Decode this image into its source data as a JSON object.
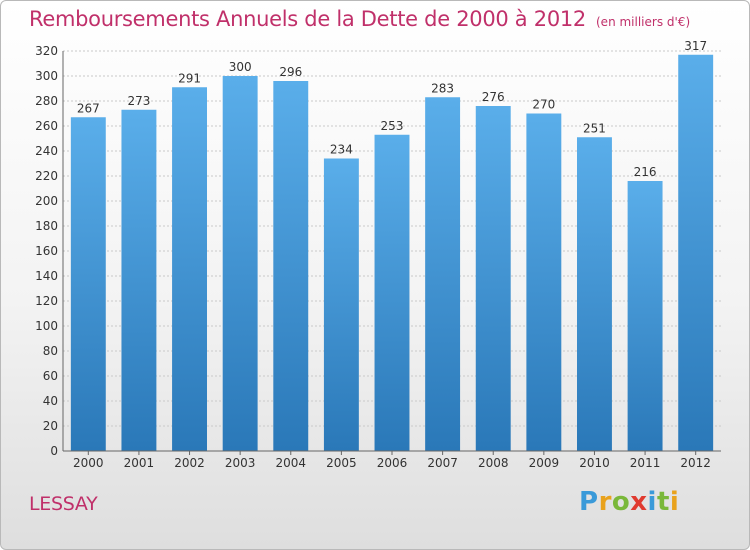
{
  "title": "Remboursements Annuels de la Dette de 2000 à 2012",
  "subtitle": "(en milliers d'€)",
  "commune": "LESSAY",
  "brand": {
    "letters": [
      {
        "char": "P",
        "color": "#3a9ad9"
      },
      {
        "char": "r",
        "color": "#e9a21c"
      },
      {
        "char": "o",
        "color": "#7ab83a"
      },
      {
        "char": "x",
        "color": "#e03a2f"
      },
      {
        "char": "i",
        "color": "#3a9ad9"
      },
      {
        "char": "t",
        "color": "#7ab83a"
      },
      {
        "char": "i",
        "color": "#e9a21c"
      }
    ]
  },
  "colors": {
    "bar_top": "#5aaeea",
    "bar_bottom": "#2a78b8",
    "title": "#c0306a",
    "grid": "#c9c9c9",
    "axis_text": "#333333"
  },
  "chart_data": {
    "type": "bar",
    "categories": [
      "2000",
      "2001",
      "2002",
      "2003",
      "2004",
      "2005",
      "2006",
      "2007",
      "2008",
      "2009",
      "2010",
      "2011",
      "2012"
    ],
    "values": [
      267,
      273,
      291,
      300,
      296,
      234,
      253,
      283,
      276,
      270,
      251,
      216,
      317
    ],
    "ylim": [
      0,
      320
    ],
    "yticks": [
      0,
      20,
      40,
      60,
      80,
      100,
      120,
      140,
      160,
      180,
      200,
      220,
      240,
      260,
      280,
      300,
      320
    ],
    "grid": true,
    "data_labels": true
  }
}
